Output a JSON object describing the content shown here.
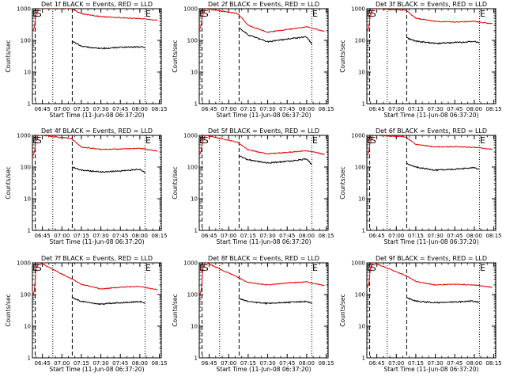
{
  "colors": {
    "events": "#000000",
    "lld": "#e00000",
    "axes": "#000000",
    "background": "#ffffff"
  },
  "chart_data": [
    {
      "type": "line",
      "title": "Det 1f BLACK = Events, RED = LLD",
      "xlabel": "Start Time (11-Jun-08 06:37:20)",
      "ylabel": "Counts/sec",
      "yscale": "log",
      "ylim": [
        1,
        1000
      ],
      "x_ticks": [
        "06:45",
        "07:00",
        "07:15",
        "07:30",
        "07:45",
        "08:00",
        "08:15"
      ],
      "y_ticks": [
        "1",
        "10",
        "100",
        "1000"
      ],
      "markers": [
        "E",
        "S",
        "E"
      ],
      "series": [
        {
          "name": "LLD",
          "color": "#e00000",
          "x": [
            "06:37",
            "06:39",
            "06:40",
            "06:42",
            "06:43",
            "07:07",
            "07:15",
            "07:30",
            "07:45",
            "08:00",
            "08:14"
          ],
          "values": [
            180,
            260,
            700,
            1000,
            1000,
            1000,
            700,
            560,
            520,
            490,
            430
          ]
        },
        {
          "name": "Events",
          "color": "#000000",
          "x": [
            "07:08",
            "07:15",
            "07:30",
            "07:45",
            "08:00",
            "08:04"
          ],
          "values": [
            95,
            65,
            55,
            60,
            62,
            60
          ]
        }
      ]
    },
    {
      "type": "line",
      "title": "Det 2f BLACK = Events, RED = LLD",
      "xlabel": "Start Time (11-Jun-08 06:37:20)",
      "ylabel": "Counts/sec",
      "yscale": "log",
      "ylim": [
        1,
        1000
      ],
      "x_ticks": [
        "06:45",
        "07:00",
        "07:15",
        "07:30",
        "07:45",
        "08:00",
        "08:15"
      ],
      "y_ticks": [
        "1",
        "10",
        "100",
        "1000"
      ],
      "markers": [
        "E",
        "S",
        "E"
      ],
      "series": [
        {
          "name": "LLD",
          "color": "#e00000",
          "x": [
            "06:37",
            "06:39",
            "06:40",
            "06:42",
            "06:43",
            "07:07",
            "07:15",
            "07:30",
            "07:45",
            "08:00",
            "08:14"
          ],
          "values": [
            200,
            300,
            800,
            1000,
            1000,
            700,
            300,
            180,
            220,
            270,
            190
          ]
        },
        {
          "name": "Events",
          "color": "#000000",
          "x": [
            "07:08",
            "07:15",
            "07:30",
            "07:45",
            "08:00",
            "08:04"
          ],
          "values": [
            250,
            150,
            90,
            110,
            130,
            75
          ]
        }
      ]
    },
    {
      "type": "line",
      "title": "Det 3f BLACK = Events, RED = LLD",
      "xlabel": "Start Time (11-Jun-08 06:37:20)",
      "ylabel": "Counts/sec",
      "yscale": "log",
      "ylim": [
        1,
        1000
      ],
      "x_ticks": [
        "06:45",
        "07:00",
        "07:15",
        "07:30",
        "07:45",
        "08:00",
        "08:15"
      ],
      "y_ticks": [
        "1",
        "10",
        "100",
        "1000"
      ],
      "markers": [
        "E",
        "S",
        "E"
      ],
      "series": [
        {
          "name": "LLD",
          "color": "#e00000",
          "x": [
            "06:37",
            "06:39",
            "06:40",
            "06:42",
            "06:43",
            "07:07",
            "07:15",
            "07:30",
            "07:45",
            "08:00",
            "08:14"
          ],
          "values": [
            180,
            260,
            700,
            1000,
            1000,
            900,
            500,
            400,
            380,
            400,
            330
          ]
        },
        {
          "name": "Events",
          "color": "#000000",
          "x": [
            "07:08",
            "07:15",
            "07:30",
            "07:45",
            "08:00",
            "08:04"
          ],
          "values": [
            120,
            95,
            80,
            85,
            92,
            85
          ]
        }
      ]
    },
    {
      "type": "line",
      "title": "Det 4f BLACK = Events, RED = LLD",
      "xlabel": "Start Time (11-Jun-08 06:37:20)",
      "ylabel": "Counts/sec",
      "yscale": "log",
      "ylim": [
        1,
        1000
      ],
      "x_ticks": [
        "06:45",
        "07:00",
        "07:15",
        "07:30",
        "07:45",
        "08:00",
        "08:15"
      ],
      "y_ticks": [
        "1",
        "10",
        "100",
        "1000"
      ],
      "markers": [
        "E",
        "S",
        "E"
      ],
      "series": [
        {
          "name": "LLD",
          "color": "#e00000",
          "x": [
            "06:37",
            "06:39",
            "06:40",
            "06:42",
            "06:43",
            "07:07",
            "07:15",
            "07:30",
            "07:45",
            "08:00",
            "08:14"
          ],
          "values": [
            200,
            300,
            800,
            1000,
            1000,
            800,
            430,
            360,
            370,
            390,
            320
          ]
        },
        {
          "name": "Events",
          "color": "#000000",
          "x": [
            "07:08",
            "07:15",
            "07:30",
            "07:45",
            "08:00",
            "08:04"
          ],
          "values": [
            100,
            80,
            70,
            75,
            85,
            65
          ]
        }
      ]
    },
    {
      "type": "line",
      "title": "Det 5f BLACK = Events, RED = LLD",
      "xlabel": "Start Time (11-Jun-08 06:37:20)",
      "ylabel": "Counts/sec",
      "yscale": "log",
      "ylim": [
        1,
        1000
      ],
      "x_ticks": [
        "06:45",
        "07:00",
        "07:15",
        "07:30",
        "07:45",
        "08:00",
        "08:15"
      ],
      "y_ticks": [
        "1",
        "10",
        "100",
        "1000"
      ],
      "markers": [
        "E",
        "S",
        "E"
      ],
      "series": [
        {
          "name": "LLD",
          "color": "#e00000",
          "x": [
            "06:37",
            "06:39",
            "06:40",
            "06:42",
            "06:43",
            "07:07",
            "07:15",
            "07:30",
            "07:45",
            "08:00",
            "08:14"
          ],
          "values": [
            220,
            330,
            800,
            1000,
            1000,
            600,
            350,
            260,
            290,
            330,
            250
          ]
        },
        {
          "name": "Events",
          "color": "#000000",
          "x": [
            "07:08",
            "07:15",
            "07:30",
            "07:45",
            "08:00",
            "08:04"
          ],
          "values": [
            230,
            170,
            135,
            150,
            180,
            120
          ]
        }
      ]
    },
    {
      "type": "line",
      "title": "Det 6f BLACK = Events, RED = LLD",
      "xlabel": "Start Time (11-Jun-08 06:37:20)",
      "ylabel": "Counts/sec",
      "yscale": "log",
      "ylim": [
        1,
        1000
      ],
      "x_ticks": [
        "06:45",
        "07:00",
        "07:15",
        "07:30",
        "07:45",
        "08:00",
        "08:15"
      ],
      "y_ticks": [
        "1",
        "10",
        "100",
        "1000"
      ],
      "markers": [
        "E",
        "S",
        "E"
      ],
      "series": [
        {
          "name": "LLD",
          "color": "#e00000",
          "x": [
            "06:37",
            "06:39",
            "06:40",
            "06:42",
            "06:43",
            "07:07",
            "07:15",
            "07:30",
            "07:45",
            "08:00",
            "08:14"
          ],
          "values": [
            200,
            300,
            750,
            1000,
            1000,
            900,
            520,
            430,
            440,
            420,
            360
          ]
        },
        {
          "name": "Events",
          "color": "#000000",
          "x": [
            "07:08",
            "07:15",
            "07:30",
            "07:45",
            "08:00",
            "08:04"
          ],
          "values": [
            130,
            100,
            80,
            85,
            95,
            85
          ]
        }
      ]
    },
    {
      "type": "line",
      "title": "Det 7f BLACK = Events, RED = LLD",
      "xlabel": "Start Time (11-Jun-08 06:37:20)",
      "ylabel": "Counts/sec",
      "yscale": "log",
      "ylim": [
        1,
        1000
      ],
      "x_ticks": [
        "06:45",
        "07:00",
        "07:15",
        "07:30",
        "07:45",
        "08:00",
        "08:15"
      ],
      "y_ticks": [
        "1",
        "10",
        "100",
        "1000"
      ],
      "markers": [
        "E",
        "S",
        "E"
      ],
      "series": [
        {
          "name": "LLD",
          "color": "#e00000",
          "x": [
            "06:37",
            "06:39",
            "06:40",
            "06:42",
            "06:43",
            "07:07",
            "07:15",
            "07:30",
            "07:45",
            "08:00",
            "08:14"
          ],
          "values": [
            80,
            140,
            700,
            1000,
            1000,
            320,
            210,
            150,
            170,
            180,
            140
          ]
        },
        {
          "name": "Events",
          "color": "#000000",
          "x": [
            "07:08",
            "07:15",
            "07:30",
            "07:45",
            "08:00",
            "08:04"
          ],
          "values": [
            80,
            60,
            50,
            55,
            60,
            55
          ]
        }
      ]
    },
    {
      "type": "line",
      "title": "Det 8f BLACK = Events, RED = LLD",
      "xlabel": "Start Time (11-Jun-08 06:37:20)",
      "ylabel": "Counts/sec",
      "yscale": "log",
      "ylim": [
        1,
        1000
      ],
      "x_ticks": [
        "06:45",
        "07:00",
        "07:15",
        "07:30",
        "07:45",
        "08:00",
        "08:15"
      ],
      "y_ticks": [
        "1",
        "10",
        "100",
        "1000"
      ],
      "markers": [
        "E",
        "S",
        "E"
      ],
      "series": [
        {
          "name": "LLD",
          "color": "#e00000",
          "x": [
            "06:37",
            "06:39",
            "06:40",
            "06:42",
            "06:43",
            "07:07",
            "07:15",
            "07:30",
            "07:45",
            "08:00",
            "08:14"
          ],
          "values": [
            80,
            140,
            700,
            1000,
            1000,
            350,
            240,
            200,
            230,
            250,
            190
          ]
        },
        {
          "name": "Events",
          "color": "#000000",
          "x": [
            "07:08",
            "07:15",
            "07:30",
            "07:45",
            "08:00",
            "08:04"
          ],
          "values": [
            75,
            60,
            52,
            56,
            60,
            55
          ]
        }
      ]
    },
    {
      "type": "line",
      "title": "Det 9f BLACK = Events, RED = LLD",
      "xlabel": "Start Time (11-Jun-08 06:37:20)",
      "ylabel": "Counts/sec",
      "yscale": "log",
      "ylim": [
        1,
        1000
      ],
      "x_ticks": [
        "06:45",
        "07:00",
        "07:15",
        "07:30",
        "07:45",
        "08:00",
        "08:15"
      ],
      "y_ticks": [
        "1",
        "10",
        "100",
        "1000"
      ],
      "markers": [
        "E",
        "S",
        "E"
      ],
      "series": [
        {
          "name": "LLD",
          "color": "#e00000",
          "x": [
            "06:37",
            "06:39",
            "06:40",
            "06:42",
            "06:43",
            "07:07",
            "07:15",
            "07:30",
            "07:45",
            "08:00",
            "08:14"
          ],
          "values": [
            150,
            220,
            700,
            1000,
            1000,
            400,
            260,
            200,
            210,
            200,
            170
          ]
        },
        {
          "name": "Events",
          "color": "#000000",
          "x": [
            "07:08",
            "07:15",
            "07:30",
            "07:45",
            "08:00",
            "08:04"
          ],
          "values": [
            80,
            62,
            55,
            58,
            62,
            56
          ]
        }
      ]
    }
  ]
}
